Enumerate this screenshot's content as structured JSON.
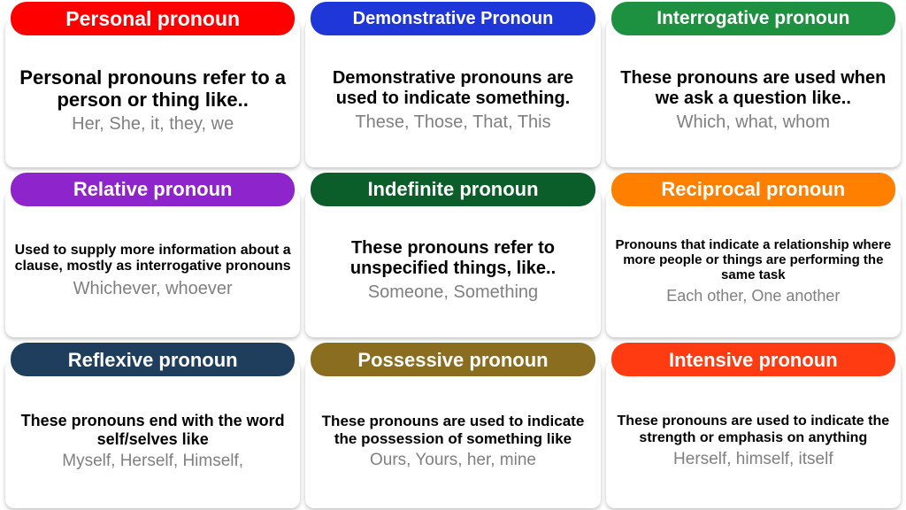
{
  "cards": [
    {
      "title": "Personal pronoun",
      "description": "Personal pronouns refer to a person or thing like..",
      "examples": "Her, She, it, they, we",
      "header_bg": "#ff0000",
      "header_fontsize": 23,
      "desc_fontsize": 22,
      "examples_fontsize": 20
    },
    {
      "title": "Demonstrative Pronoun",
      "description": "Demonstrative pronouns are used to indicate something.",
      "examples": "These, Those, That, This",
      "header_bg": "#1f36d9",
      "header_fontsize": 20,
      "desc_fontsize": 20,
      "examples_fontsize": 20
    },
    {
      "title": "Interrogative pronoun",
      "description": "These pronouns are used when we ask a question like..",
      "examples": "Which, what, whom",
      "header_bg": "#1e9140",
      "header_fontsize": 21,
      "desc_fontsize": 20,
      "examples_fontsize": 20
    },
    {
      "title": "Relative pronoun",
      "description": "Used to supply more information about a clause, mostly as interrogative pronouns",
      "examples": "Whichever, whoever",
      "header_bg": "#8e24cc",
      "header_fontsize": 22,
      "desc_fontsize": 16,
      "examples_fontsize": 20
    },
    {
      "title": "Indefinite pronoun",
      "description": "These pronouns refer to unspecified things, like..",
      "examples": "Someone, Something",
      "header_bg": "#0b5d2a",
      "header_fontsize": 22,
      "desc_fontsize": 20,
      "examples_fontsize": 20
    },
    {
      "title": "Reciprocal pronoun",
      "description": "Pronouns that indicate a relationship where more people or things are performing the same task",
      "examples": "Each other, One another",
      "header_bg": "#ff7f00",
      "header_fontsize": 22,
      "desc_fontsize": 15,
      "examples_fontsize": 18
    },
    {
      "title": "Reflexive pronoun",
      "description": "These pronouns end with the word self/selves like",
      "examples": "Myself, Herself, Himself,",
      "header_bg": "#1f3d5c",
      "header_fontsize": 22,
      "desc_fontsize": 18,
      "examples_fontsize": 19
    },
    {
      "title": "Possessive pronoun",
      "description": "These pronouns are used to indicate the possession of something like",
      "examples": "Ours, Yours, her, mine",
      "header_bg": "#8a6d1f",
      "header_fontsize": 22,
      "desc_fontsize": 17,
      "examples_fontsize": 19
    },
    {
      "title": "Intensive pronoun",
      "description": "These pronouns are used to indicate the strength or emphasis on anything",
      "examples": "Herself, himself, itself",
      "header_bg": "#ff3b12",
      "header_fontsize": 22,
      "desc_fontsize": 16,
      "examples_fontsize": 19
    }
  ],
  "body_bg": "#ffffff"
}
